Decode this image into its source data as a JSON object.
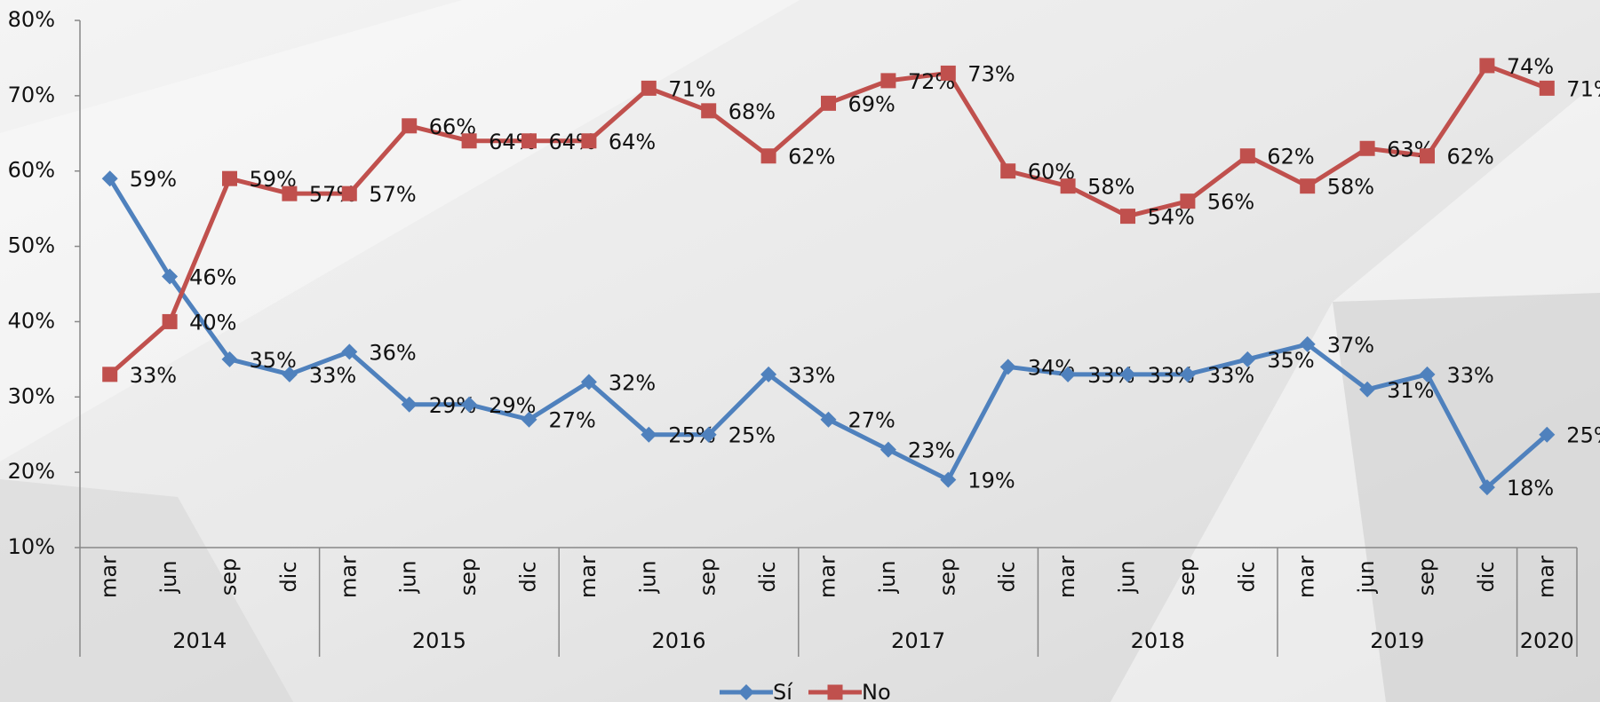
{
  "chart_data": {
    "type": "line",
    "categories": [
      "mar",
      "jun",
      "sep",
      "dic",
      "mar",
      "jun",
      "sep",
      "dic",
      "mar",
      "jun",
      "sep",
      "dic",
      "mar",
      "jun",
      "sep",
      "dic",
      "mar",
      "jun",
      "sep",
      "dic",
      "mar",
      "jun",
      "sep",
      "dic",
      "mar"
    ],
    "years": [
      "2014",
      "2015",
      "2016",
      "2017",
      "2018",
      "2019",
      "2020"
    ],
    "series": [
      {
        "name": "Sí",
        "color": "#4f81bd",
        "marker": "diamond",
        "values": [
          59,
          46,
          35,
          33,
          36,
          29,
          29,
          27,
          32,
          25,
          25,
          33,
          27,
          23,
          19,
          34,
          33,
          33,
          33,
          35,
          37,
          31,
          33,
          18,
          25
        ],
        "value_labels": [
          "59%",
          "46%",
          "35%",
          "33%",
          "36%",
          "29%",
          "29%",
          "27%",
          "32%",
          "25%",
          "25%",
          "33%",
          "27%",
          "23%",
          "19%",
          "34%",
          "33%",
          "33%",
          "33%",
          "35%",
          "37%",
          "31%",
          "33%",
          "18%",
          "25%"
        ]
      },
      {
        "name": "No",
        "color": "#c0504d",
        "marker": "square",
        "values": [
          33,
          40,
          59,
          57,
          57,
          66,
          64,
          64,
          64,
          71,
          68,
          62,
          69,
          72,
          73,
          60,
          58,
          54,
          56,
          62,
          58,
          63,
          62,
          74,
          71
        ],
        "value_labels": [
          "33%",
          "40%",
          "59%",
          "57%",
          "57%",
          "66%",
          "64%",
          "64%",
          "64%",
          "71%",
          "68%",
          "62%",
          "69%",
          "72%",
          "73%",
          "60%",
          "58%",
          "54%",
          "56%",
          "62%",
          "58%",
          "63%",
          "62%",
          "74%",
          "71%"
        ]
      }
    ],
    "ylim": [
      10,
      80
    ],
    "yticks": [
      {
        "value": 10,
        "label": "10%"
      },
      {
        "value": 20,
        "label": "20%"
      },
      {
        "value": 30,
        "label": "30%"
      },
      {
        "value": 40,
        "label": "40%"
      },
      {
        "value": 50,
        "label": "50%"
      },
      {
        "value": 60,
        "label": "60%"
      },
      {
        "value": 70,
        "label": "70%"
      },
      {
        "value": 80,
        "label": "80%"
      }
    ],
    "legend": "bottom"
  }
}
